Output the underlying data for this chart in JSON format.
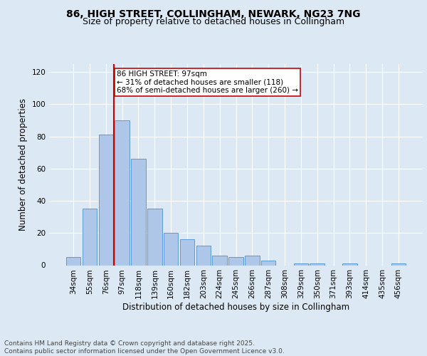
{
  "title": "86, HIGH STREET, COLLINGHAM, NEWARK, NG23 7NG",
  "subtitle": "Size of property relative to detached houses in Collingham",
  "xlabel": "Distribution of detached houses by size in Collingham",
  "ylabel": "Number of detached properties",
  "categories": [
    "34sqm",
    "55sqm",
    "76sqm",
    "97sqm",
    "118sqm",
    "139sqm",
    "160sqm",
    "182sqm",
    "203sqm",
    "224sqm",
    "245sqm",
    "266sqm",
    "287sqm",
    "308sqm",
    "329sqm",
    "350sqm",
    "371sqm",
    "393sqm",
    "414sqm",
    "435sqm",
    "456sqm"
  ],
  "values": [
    5,
    35,
    81,
    90,
    66,
    35,
    20,
    16,
    12,
    6,
    5,
    6,
    3,
    0,
    1,
    1,
    0,
    1,
    0,
    0,
    1
  ],
  "bar_color": "#aec6e8",
  "bar_edge_color": "#5b9bd5",
  "vline_x_index": 3,
  "vline_color": "#cc0000",
  "annotation_text": "86 HIGH STREET: 97sqm\n← 31% of detached houses are smaller (118)\n68% of semi-detached houses are larger (260) →",
  "annotation_box_color": "#ffffff",
  "annotation_box_edge_color": "#cc0000",
  "ylim": [
    0,
    125
  ],
  "yticks": [
    0,
    20,
    40,
    60,
    80,
    100,
    120
  ],
  "background_color": "#dce9f5",
  "plot_bg_color": "#dce9f5",
  "footer_text": "Contains HM Land Registry data © Crown copyright and database right 2025.\nContains public sector information licensed under the Open Government Licence v3.0.",
  "title_fontsize": 10,
  "subtitle_fontsize": 9,
  "xlabel_fontsize": 8.5,
  "ylabel_fontsize": 8.5,
  "tick_fontsize": 7.5,
  "annotation_fontsize": 7.5,
  "footer_fontsize": 6.5
}
